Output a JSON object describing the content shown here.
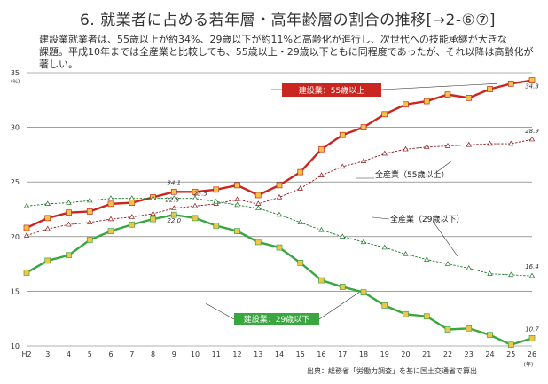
{
  "page": {
    "title": "6. 就業者に占める若年層・高年齢層の割合の推移[→2-⑥⑦]",
    "description": [
      "建設業就業者は、55歳以上が約34%、29歳以下が約11%と高齢化が進行し、次世代への技能承継が大きな",
      "課題。平成10年までは全産業と比較しても、55歳以上・29歳以下ともに同程度であったが、それ以降は高齢化が",
      "著しい。"
    ],
    "source": "出典：総務省「労働力調査」を基に国土交通省で算出"
  },
  "chart_data": {
    "type": "line",
    "x": [
      "H2",
      "3",
      "4",
      "5",
      "6",
      "7",
      "8",
      "9",
      "10",
      "11",
      "12",
      "13",
      "14",
      "15",
      "16",
      "17",
      "18",
      "19",
      "20",
      "21",
      "22",
      "23",
      "24",
      "25",
      "26"
    ],
    "xunit": "(年)",
    "yunit": "(%)",
    "ylim": [
      10,
      35
    ],
    "yticks": [
      10,
      15,
      20,
      25,
      30,
      35
    ],
    "grid": true,
    "series": [
      {
        "name": "建設業：55歳以上",
        "color": "#c8261e",
        "marker": "square",
        "values": [
          20.8,
          21.7,
          22.2,
          22.3,
          23.0,
          23.1,
          23.6,
          24.1,
          24.1,
          24.3,
          24.7,
          23.8,
          24.7,
          25.9,
          28.0,
          29.3,
          30.0,
          31.2,
          32.1,
          32.4,
          33.0,
          32.7,
          33.5,
          34.0,
          34.3
        ]
      },
      {
        "name": "全産業（55歳以上）",
        "color": "#8b1a1a",
        "marker": "triangle",
        "values": [
          20.1,
          20.7,
          21.1,
          21.3,
          21.6,
          21.8,
          22.1,
          22.6,
          22.8,
          23.0,
          23.4,
          23.0,
          23.6,
          24.4,
          25.6,
          26.4,
          26.9,
          27.6,
          28.0,
          28.2,
          28.3,
          28.4,
          28.5,
          28.5,
          28.9
        ]
      },
      {
        "name": "全産業（29歳以下）",
        "color": "#1d7a2a",
        "marker": "triangle",
        "values": [
          22.8,
          23.0,
          23.1,
          23.3,
          23.5,
          23.5,
          23.5,
          23.5,
          23.5,
          23.2,
          22.9,
          22.6,
          22.0,
          21.3,
          20.6,
          20.0,
          19.5,
          19.0,
          18.4,
          17.9,
          17.5,
          17.1,
          16.6,
          16.5,
          16.4
        ]
      },
      {
        "name": "建設業：29歳以下",
        "color": "#3aa63f",
        "marker": "square",
        "values": [
          16.7,
          17.8,
          18.3,
          19.7,
          20.5,
          21.1,
          21.6,
          22.0,
          21.7,
          21.0,
          20.5,
          19.5,
          19.0,
          17.6,
          16.0,
          15.4,
          14.9,
          13.7,
          12.9,
          12.7,
          11.5,
          11.6,
          11.0,
          10.1,
          10.7
        ]
      }
    ],
    "data_labels": [
      "34.1",
      "23.5",
      "22.8",
      "22.0",
      "34.3",
      "28.9",
      "16.4",
      "10.7"
    ],
    "callouts": [
      "建設業：55歳以上",
      "全産業（55歳以上）",
      "全産業（29歳以下）",
      "建設業：29歳以下"
    ]
  }
}
